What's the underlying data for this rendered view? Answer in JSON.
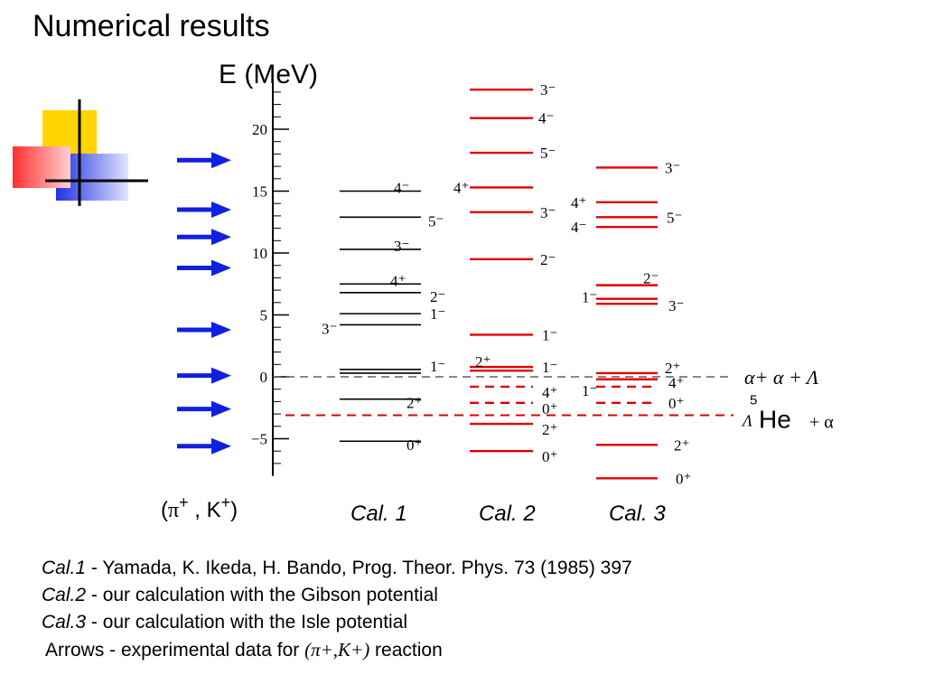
{
  "title": "Numerical results",
  "colors": {
    "calc_line": "#000000",
    "cal2_line": "#e00000",
    "arrow": "#1020e0",
    "threshold": "#606060"
  },
  "chart_data": {
    "type": "level-scheme",
    "axis": {
      "label": "E (MeV)",
      "ticks": [
        20,
        15,
        10,
        5,
        0,
        -5
      ],
      "range": [
        -8,
        24
      ]
    },
    "experimental_arrows_mev": [
      17.5,
      13.5,
      11.3,
      8.8,
      3.8,
      0.1,
      -2.6,
      -5.6
    ],
    "reaction_label": {
      "open": "(",
      "pi": "π",
      "plus1": "+",
      "sep": " , K",
      "plus2": "+",
      "close": ")"
    },
    "columns": [
      {
        "name": "Cal. 1",
        "levels": [
          {
            "e": 15.0,
            "label": "4⁻"
          },
          {
            "e": 12.9,
            "label": "5⁻"
          },
          {
            "e": 10.3,
            "label": "3⁻"
          },
          {
            "e": 7.5,
            "label": "4⁺"
          },
          {
            "e": 6.8,
            "label": "2⁻"
          },
          {
            "e": 5.1,
            "label": "1⁻"
          },
          {
            "e": 4.2,
            "label": "3⁻"
          },
          {
            "e": 0.6,
            "label": "1⁻"
          },
          {
            "e": -1.8,
            "label": "2⁺"
          },
          {
            "e": -5.2,
            "label": "0⁺"
          }
        ]
      },
      {
        "name": "Cal. 2",
        "levels": [
          {
            "e": 23.2,
            "label": "3⁻"
          },
          {
            "e": 20.9,
            "label": "4⁻"
          },
          {
            "e": 18.1,
            "label": "5⁻"
          },
          {
            "e": 15.3,
            "label": "4⁺"
          },
          {
            "e": 13.3,
            "label": "3⁻"
          },
          {
            "e": 9.5,
            "label": "2⁻"
          },
          {
            "e": 3.4,
            "label": "1⁻"
          },
          {
            "e": 0.8,
            "label": "2⁺"
          },
          {
            "e": 0.5,
            "label": "1⁻"
          },
          {
            "e": -0.8,
            "label": "4⁺"
          },
          {
            "e": -2.1,
            "label": "0⁺"
          },
          {
            "e": -3.8,
            "label": "2⁺"
          },
          {
            "e": -6.0,
            "label": "0⁺"
          }
        ]
      },
      {
        "name": "Cal. 3",
        "levels": [
          {
            "e": 16.9,
            "label": "3⁻"
          },
          {
            "e": 14.1,
            "label": "4⁺"
          },
          {
            "e": 12.9,
            "label": "5⁻"
          },
          {
            "e": 12.1,
            "label": "4⁻"
          },
          {
            "e": 7.4,
            "label": "2⁻"
          },
          {
            "e": 6.3,
            "label": "1⁻"
          },
          {
            "e": 5.9,
            "label": "3⁻"
          },
          {
            "e": 0.3,
            "label": "2⁺"
          },
          {
            "e": -0.2,
            "label": "4⁺"
          },
          {
            "e": -0.8,
            "label": "1⁻"
          },
          {
            "e": -2.1,
            "label": "0⁺"
          },
          {
            "e": -5.5,
            "label": "2⁺"
          },
          {
            "e": -8.2,
            "label": "0⁺"
          }
        ]
      }
    ],
    "thresholds": [
      {
        "e": 0.0,
        "label": "α+ α + Λ"
      },
      {
        "e": -3.1,
        "label_mass": "5",
        "label_sym": "Λ",
        "label_el": "He",
        "label_rest": "+ α"
      }
    ]
  },
  "caption": {
    "line1": {
      "ref": "Cal.1",
      "text": " -  Yamada, K. Ikeda, H. Bando, Prog. Theor. Phys. 73 (1985) 397"
    },
    "line2": {
      "ref": "Cal.2",
      "text": " - our calculation with the Gibson potential"
    },
    "line3": {
      "ref": "Cal.3",
      "text": " - our calculation with the Isle potential"
    },
    "line4": {
      "text": "Arrows - experimental data for ",
      "reaction": "(π+,K+)",
      "tail": " reaction"
    }
  }
}
